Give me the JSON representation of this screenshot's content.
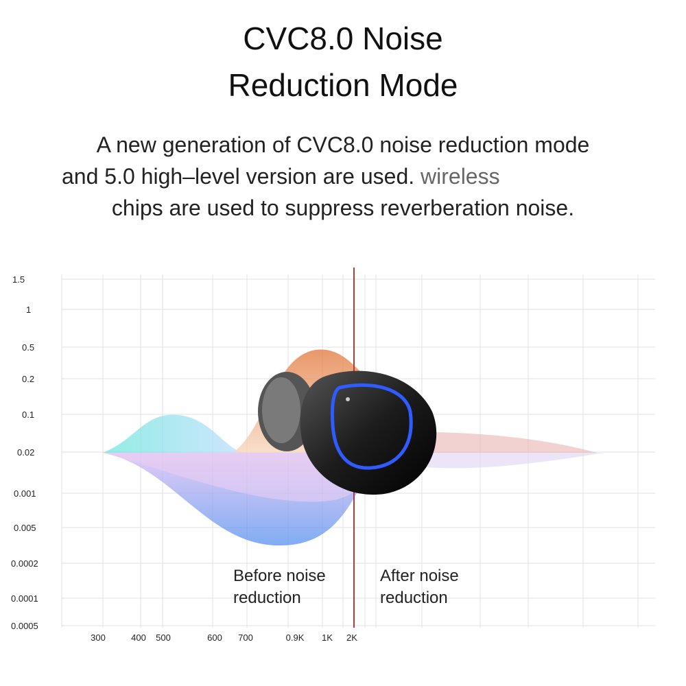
{
  "header": {
    "title_lines": [
      "CVC8.0 Noise",
      "Reduction Mode"
    ]
  },
  "description": {
    "lines": [
      "A new generation of CVC8.0 noise reduction mode",
      "and 5.0 high–level version are used.",
      "chips are used to suppress reverberation noise."
    ],
    "highlight": "wireless"
  },
  "graph": {
    "y_labels": [
      "1.5",
      "1",
      "0.5",
      "0.2",
      "0.1",
      "0.02",
      "0.001",
      "0.005",
      "0.0002",
      "0.0001",
      "0.0005"
    ],
    "x_labels": [
      "300",
      "400",
      "500",
      "600",
      "700",
      "0.9K",
      "1K",
      "2K"
    ],
    "before_label": [
      "Before noise",
      "reduction"
    ],
    "after_label": [
      "After noise",
      "reduction"
    ]
  }
}
